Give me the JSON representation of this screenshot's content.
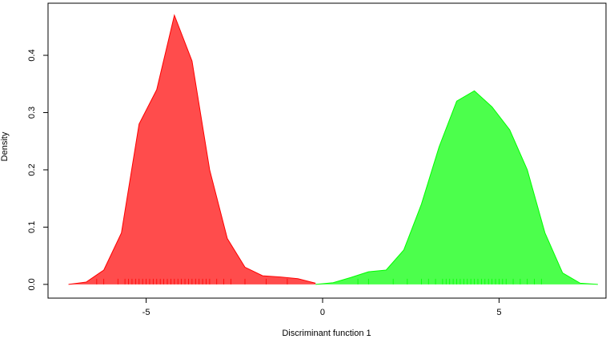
{
  "chart_data": {
    "type": "density",
    "x_label": "Discriminant function 1",
    "y_label": "Density",
    "x": [
      -7.2,
      -6.7,
      -6.2,
      -5.7,
      -5.2,
      -4.7,
      -4.2,
      -3.7,
      -3.2,
      -2.7,
      -2.2,
      -1.7,
      -1.2,
      -0.7,
      -0.2,
      0.3,
      0.8,
      1.3,
      1.8,
      2.3,
      2.8,
      3.3,
      3.8,
      4.3,
      4.8,
      5.3,
      5.8,
      6.3,
      6.8,
      7.3,
      7.8
    ],
    "series": [
      {
        "color": "#ff0000",
        "values": [
          0,
          0.004,
          0.025,
          0.09,
          0.28,
          0.34,
          0.47,
          0.39,
          0.2,
          0.08,
          0.03,
          0.015,
          0.013,
          0.01,
          0.002,
          null,
          null,
          null,
          null,
          null,
          null,
          null,
          null,
          null,
          null,
          null,
          null,
          null,
          null,
          null,
          null
        ],
        "rug": [
          -6.4,
          -6.2,
          -5.8,
          -5.6,
          -5.5,
          -5.4,
          -5.3,
          -5.2,
          -5.1,
          -5.0,
          -4.9,
          -4.8,
          -4.7,
          -4.6,
          -4.5,
          -4.4,
          -4.3,
          -4.2,
          -4.1,
          -4.0,
          -3.9,
          -3.8,
          -3.7,
          -3.6,
          -3.5,
          -3.4,
          -3.3,
          -3.2,
          -3.0,
          -2.8,
          -2.6,
          -2.2,
          -1.6,
          -1.0
        ]
      },
      {
        "color": "#00ff00",
        "values": [
          null,
          null,
          null,
          null,
          null,
          null,
          null,
          null,
          null,
          null,
          null,
          null,
          null,
          null,
          0,
          0.003,
          0.012,
          0.022,
          0.025,
          0.06,
          0.14,
          0.24,
          0.32,
          0.338,
          0.31,
          0.27,
          0.2,
          0.09,
          0.02,
          0.002,
          0
        ],
        "rug": [
          1.0,
          1.3,
          2.0,
          2.4,
          2.8,
          3.0,
          3.2,
          3.4,
          3.5,
          3.6,
          3.7,
          3.8,
          3.9,
          4.0,
          4.1,
          4.2,
          4.3,
          4.4,
          4.5,
          4.6,
          4.7,
          4.8,
          4.9,
          5.0,
          5.1,
          5.2,
          5.4,
          5.6,
          5.8,
          6.0,
          6.2
        ]
      }
    ],
    "xlim": [
      -7.78,
      8.03
    ],
    "ylim": [
      -0.024,
      0.491
    ],
    "xticks": [
      -5,
      0,
      5
    ],
    "yticks": [
      {
        "value": 0,
        "label": "0.0"
      },
      0.1,
      0.2,
      0.3,
      0.4
    ]
  }
}
